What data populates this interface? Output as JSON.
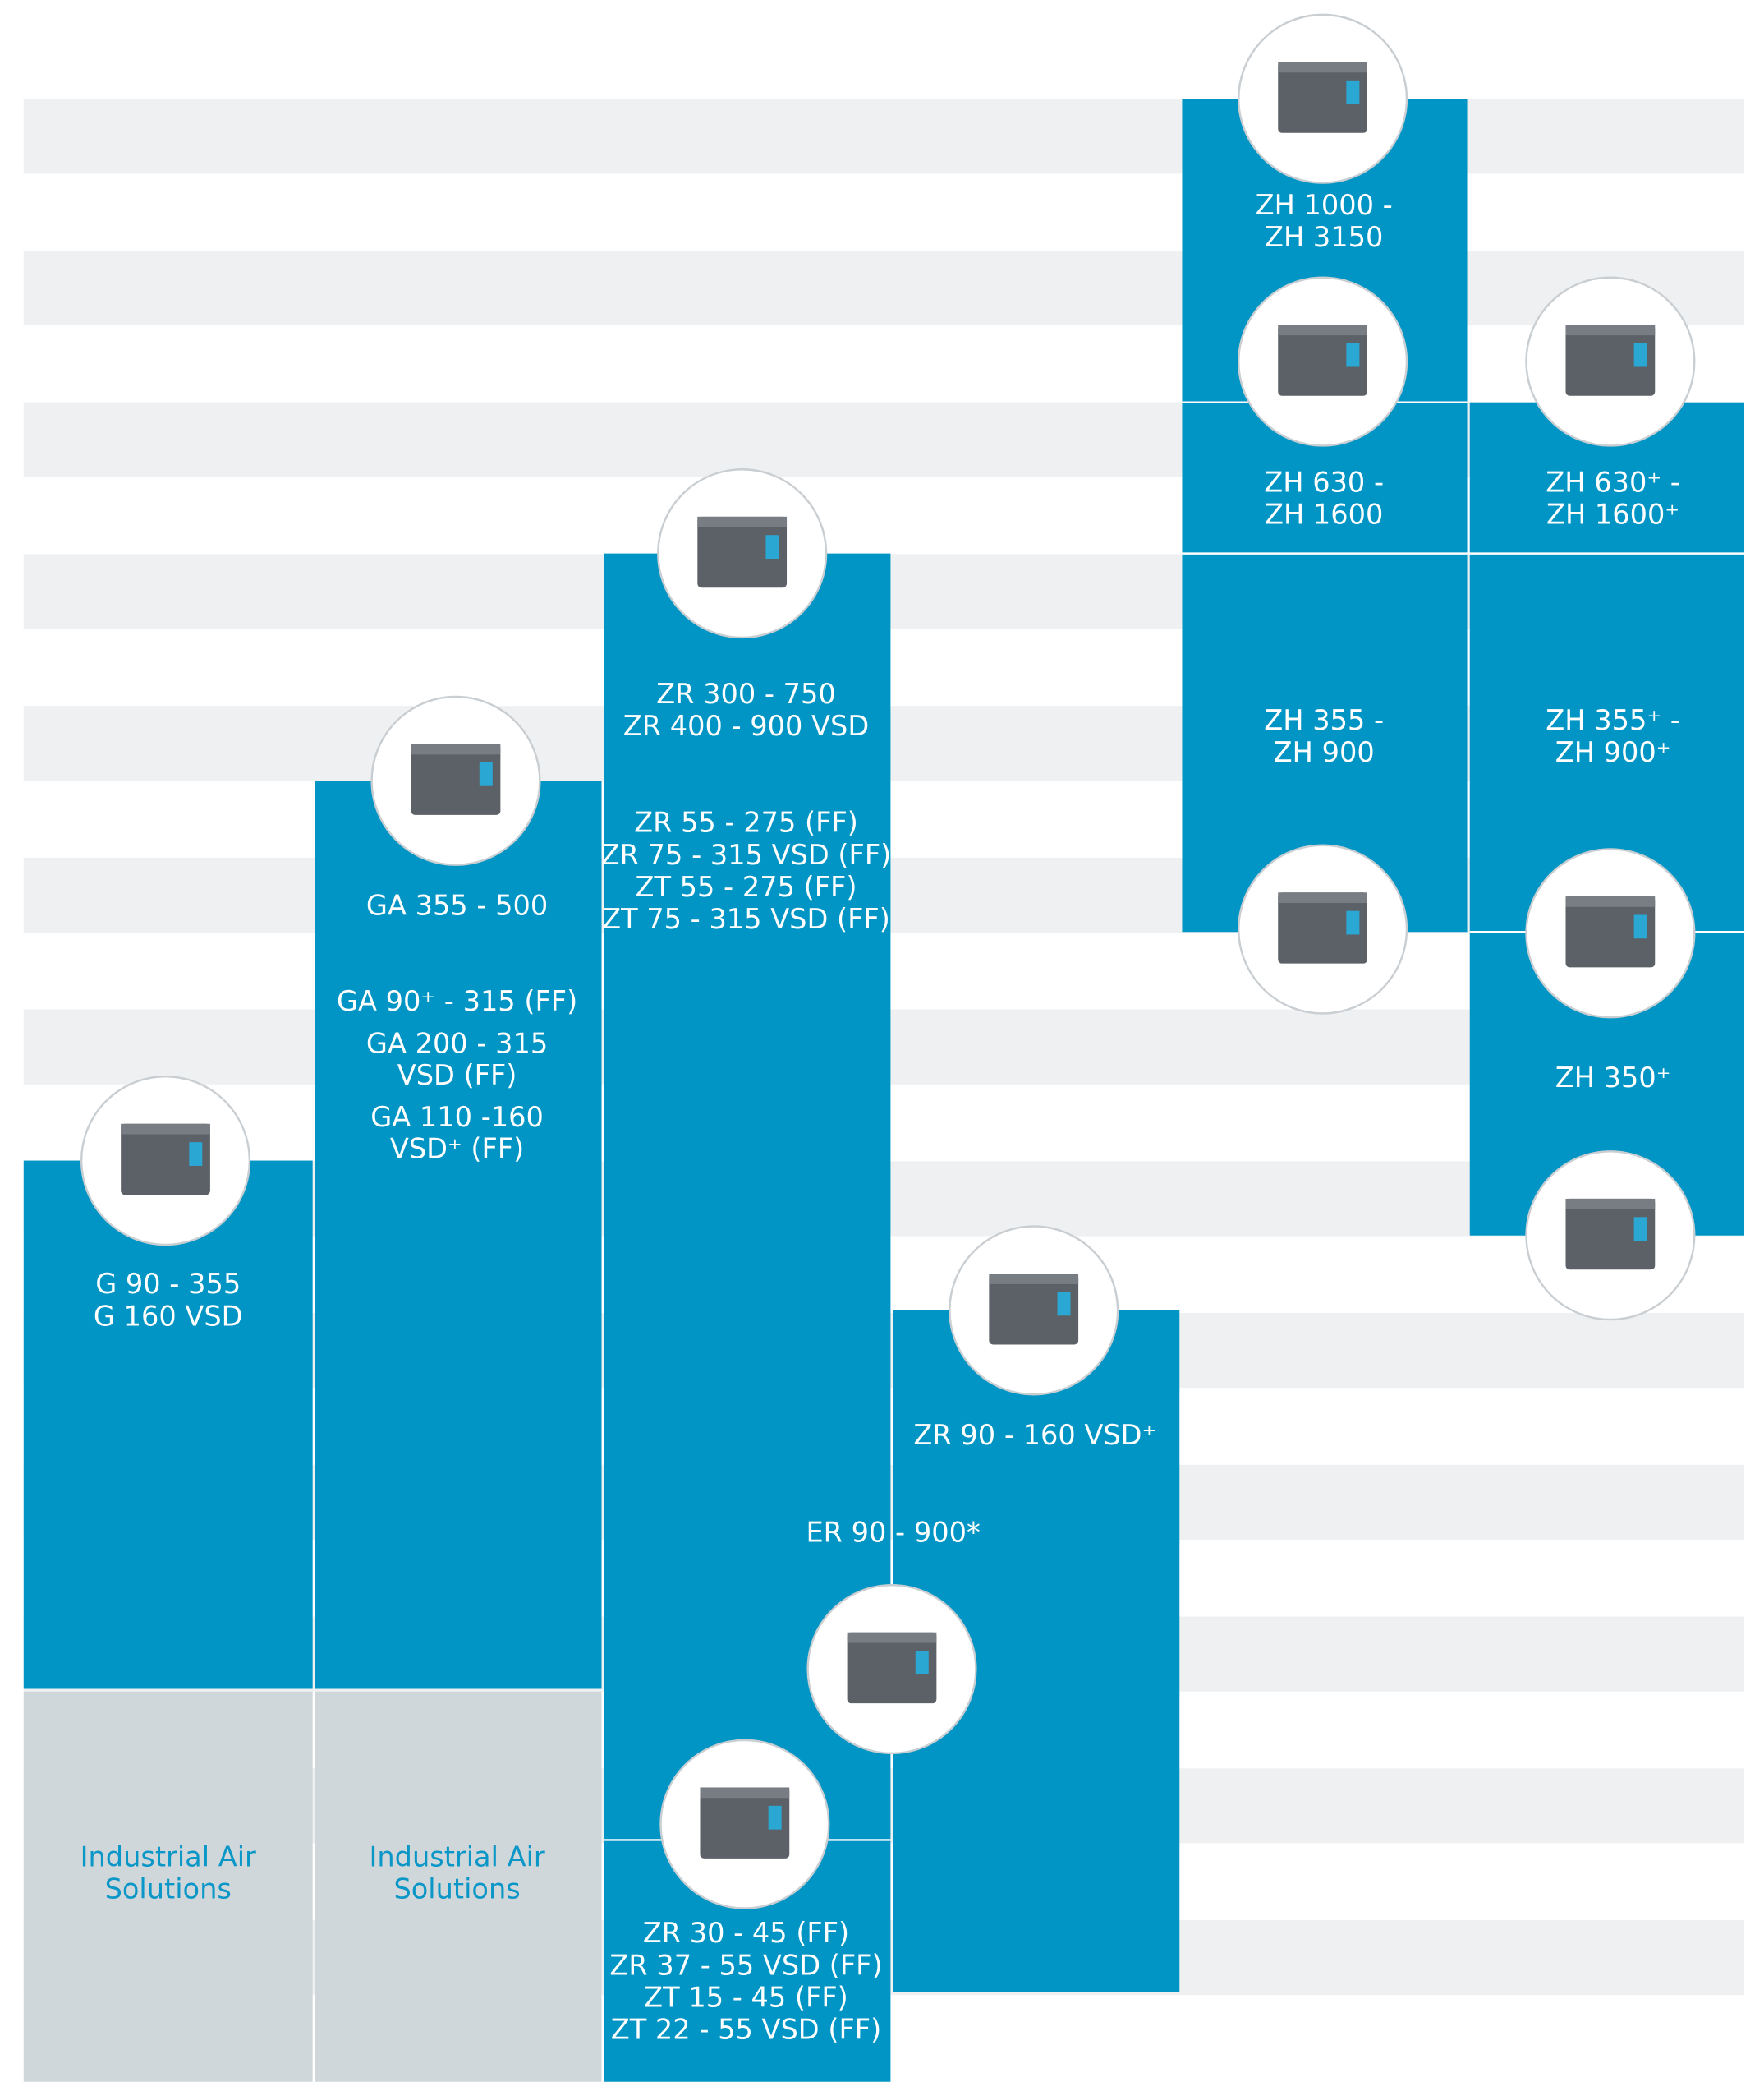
{
  "labels": [
    {
      "lines": [
        "ZH 1000 -",
        "ZH 3150"
      ]
    },
    {
      "lines": [
        "ZH 630 -",
        "ZH 1600"
      ]
    },
    {
      "lines": [
        "ZH 630⁺ -",
        "ZH 1600⁺"
      ]
    },
    {
      "lines": [
        "ZR 300 - 750",
        "ZR 400 - 900 VSD"
      ]
    },
    {
      "lines": [
        "ZH 355 -",
        "ZH 900"
      ]
    },
    {
      "lines": [
        "ZH 355⁺ -",
        "ZH 900⁺"
      ]
    },
    {
      "lines": [
        "ZR 55 - 275 (FF)",
        "ZR 75 - 315 VSD (FF)",
        "ZT 55 - 275 (FF)",
        "ZT 75 - 315 VSD (FF)"
      ]
    },
    {
      "lines": [
        "GA 355 - 500"
      ]
    },
    {
      "lines": [
        "GA 90⁺ - 315 (FF)",
        "GA 200 - 315",
        "VSD (FF)",
        "GA 110 -160",
        "VSD⁺ (FF)"
      ]
    },
    {
      "lines": [
        "ZH 350⁺"
      ]
    },
    {
      "lines": [
        "G 90 - 355",
        "G 160 VSD"
      ]
    },
    {
      "lines": [
        "ZR 90 - 160 VSD⁺"
      ]
    },
    {
      "lines": [
        "ER 90 - 900*"
      ]
    },
    {
      "lines": [
        "Industrial Air",
        "Solutions"
      ]
    },
    {
      "lines": [
        "Industrial Air",
        "Solutions"
      ]
    },
    {
      "lines": [
        "ZR 30 - 45 (FF)",
        "ZR 37 - 55 VSD (FF)",
        "ZT 15 - 45 (FF)",
        "ZT 22 - 55 VSD (FF)"
      ]
    }
  ]
}
